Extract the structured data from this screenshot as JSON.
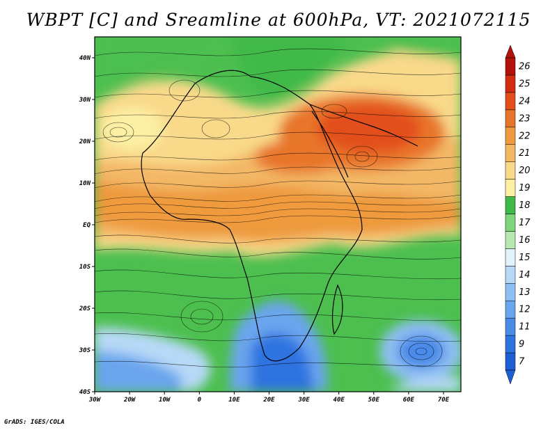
{
  "title": "WBPT [C] and Sreamline at 600hPa, VT: 2021072115",
  "footer": "GrADS: IGES/COLA",
  "map": {
    "lat_labels": [
      "40N",
      "30N",
      "20N",
      "10N",
      "EQ",
      "10S",
      "20S",
      "30S",
      "40S"
    ],
    "lat_values": [
      40,
      30,
      20,
      10,
      0,
      -10,
      -20,
      -30,
      -40
    ],
    "lon_labels": [
      "30W",
      "20W",
      "10W",
      "0",
      "10E",
      "20E",
      "30E",
      "40E",
      "50E",
      "60E",
      "70E"
    ],
    "lon_values": [
      -30,
      -20,
      -10,
      0,
      10,
      20,
      30,
      40,
      50,
      60,
      70
    ],
    "lat_range": [
      -40,
      45
    ],
    "lon_range": [
      -30,
      75
    ]
  },
  "colorbar": {
    "labels": [
      "7",
      "9",
      "11",
      "12",
      "13",
      "14",
      "15",
      "16",
      "17",
      "18",
      "19",
      "20",
      "21",
      "22",
      "23",
      "24",
      "25",
      "26"
    ],
    "colors": [
      "#1e5fd6",
      "#2f73e0",
      "#4a8be8",
      "#6aa5ee",
      "#8fbff3",
      "#b7d9f7",
      "#e3f3fb",
      "#b6e8b0",
      "#7dd57a",
      "#3fb94a",
      "#fbf0a4",
      "#f9d98a",
      "#f3b866",
      "#ee9a3e",
      "#e8762a",
      "#e24f1c",
      "#d22c12",
      "#b3120a"
    ]
  },
  "colors": {
    "green": "#4cbf4f",
    "orange": "#f0a347",
    "blue": "#3e7fe0"
  }
}
